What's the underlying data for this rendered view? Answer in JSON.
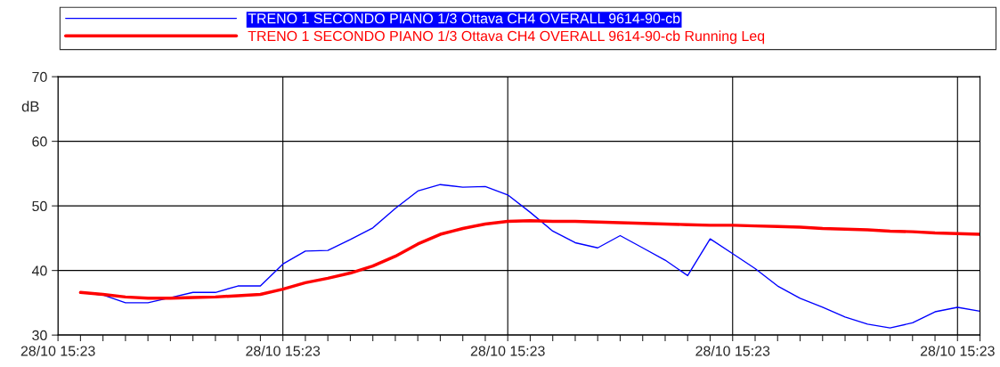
{
  "chart_data": {
    "type": "line",
    "ylabel": "dB",
    "categories": [
      "28/10 15:23",
      null,
      null,
      null,
      null,
      null,
      null,
      null,
      null,
      null,
      "28/10 15:23",
      null,
      null,
      null,
      null,
      null,
      null,
      null,
      null,
      null,
      "28/10 15:23",
      null,
      null,
      null,
      null,
      null,
      null,
      null,
      null,
      null,
      "28/10 15:23",
      null,
      null,
      null,
      null,
      null,
      null,
      null,
      null,
      null,
      "28/10 15:23",
      null
    ],
    "ylim": [
      30,
      70
    ],
    "yticks": [
      30,
      40,
      50,
      60,
      70
    ],
    "grid": true,
    "legend": "top",
    "marker": "none",
    "line_style": "solid",
    "series": [
      {
        "name": "TRENO 1 SECONDO PIANO 1/3 Ottava CH4 OVERALL 9614-90-cb",
        "color": "#0000ff",
        "values": [
          null,
          36.6,
          36.2,
          35.0,
          35.0,
          35.8,
          36.6,
          36.6,
          37.6,
          37.6,
          41.0,
          43.0,
          43.1,
          44.8,
          46.6,
          49.6,
          52.3,
          53.3,
          52.9,
          53.0,
          51.7,
          49.0,
          46.1,
          44.3,
          43.5,
          45.4,
          43.5,
          41.6,
          39.2,
          44.9,
          42.6,
          40.3,
          37.6,
          35.7,
          34.3,
          32.8,
          31.7,
          31.1,
          31.9,
          33.6,
          34.3,
          33.7
        ]
      },
      {
        "name": "TRENO 1 SECONDO PIANO 1/3 Ottava CH4 OVERALL 9614-90-cb Running Leq",
        "color": "#ff0000",
        "values": [
          null,
          36.6,
          36.3,
          35.9,
          35.7,
          35.7,
          35.8,
          35.9,
          36.1,
          36.3,
          37.1,
          38.1,
          38.8,
          39.6,
          40.7,
          42.2,
          44.1,
          45.6,
          46.5,
          47.2,
          47.6,
          47.7,
          47.6,
          47.6,
          47.5,
          47.4,
          47.3,
          47.2,
          47.1,
          47.0,
          47.0,
          46.9,
          46.8,
          46.7,
          46.5,
          46.4,
          46.3,
          46.1,
          46.0,
          45.8,
          45.7,
          45.6
        ]
      }
    ]
  }
}
